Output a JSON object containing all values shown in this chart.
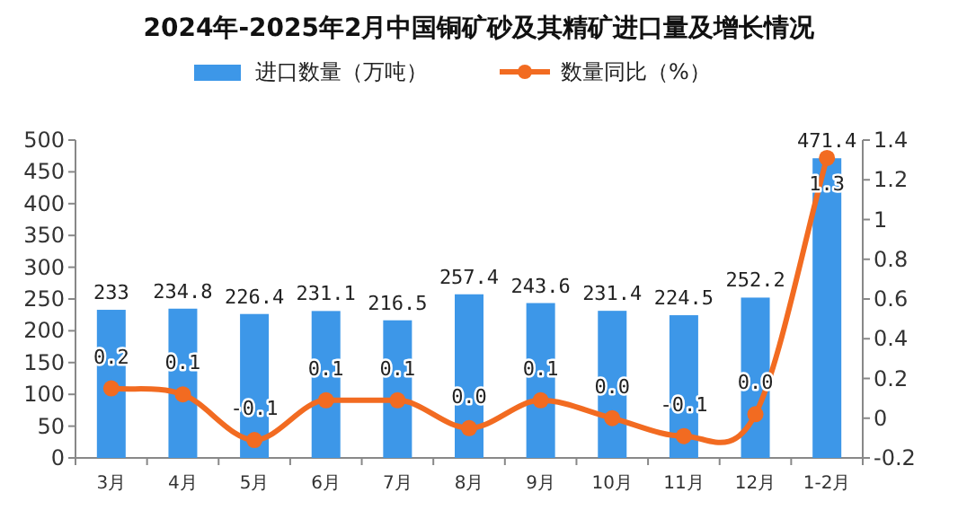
{
  "chart_data": {
    "type": "bar",
    "title": "2024年-2025年2月中国铜矿砂及其精矿进口量及增长情况",
    "categories": [
      "3月",
      "4月",
      "5月",
      "6月",
      "7月",
      "8月",
      "9月",
      "10月",
      "11月",
      "12月",
      "1-2月"
    ],
    "series": [
      {
        "name": "进口数量（万吨）",
        "color": "#3d97e8",
        "values": [
          233,
          234.8,
          226.4,
          231.1,
          216.5,
          257.4,
          243.6,
          231.4,
          224.5,
          252.2,
          471.4
        ],
        "value_labels": [
          "233",
          "234.8",
          "226.4",
          "231.1",
          "216.5",
          "257.4",
          "243.6",
          "231.4",
          "224.5",
          "252.2",
          "471.4"
        ]
      },
      {
        "name": "数量同比（%）",
        "type": "line",
        "axis": "y2",
        "color": "#f26b21",
        "marker": "circle",
        "values": [
          0.15,
          0.12,
          -0.11,
          0.09,
          0.09,
          -0.05,
          0.09,
          0.0,
          -0.09,
          0.02,
          1.31
        ],
        "value_labels": [
          "0.2",
          "0.1",
          "-0.1",
          "0.1",
          "0.1",
          "0.0",
          "0.1",
          "0.0",
          "-0.1",
          "0.0",
          "1.3"
        ]
      }
    ],
    "ylim": [
      0,
      500
    ],
    "yticks": [
      0,
      50,
      100,
      150,
      200,
      250,
      300,
      350,
      400,
      450,
      500
    ],
    "y2lim": [
      -0.2,
      1.4
    ],
    "y2ticks": [
      -0.2,
      0,
      0.2,
      0.4,
      0.6,
      0.8,
      1,
      1.2,
      1.4
    ],
    "legend": "top",
    "grid": false
  }
}
